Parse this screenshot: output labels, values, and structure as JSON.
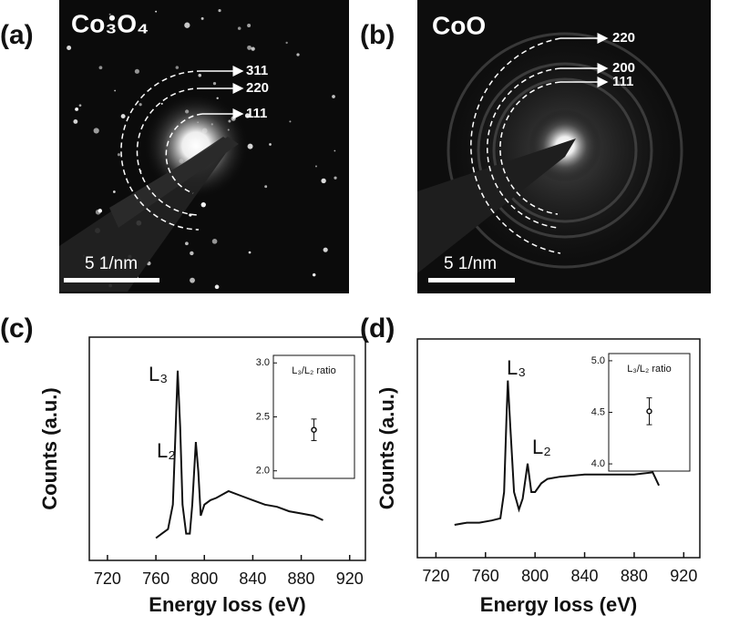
{
  "panels": [
    {
      "label": "(a)",
      "title": "Co₃O₄",
      "rings": [
        "311",
        "220",
        "111"
      ],
      "scale_bar": "5 1/nm"
    },
    {
      "label": "(b)",
      "title": "CoO",
      "rings": [
        "220",
        "200",
        "111"
      ],
      "scale_bar": "5 1/nm"
    }
  ],
  "chart_data": [
    {
      "type": "line",
      "label": "(c)",
      "xlabel": "Energy loss (eV)",
      "ylabel": "Counts (a.u.)",
      "xlim": [
        705,
        933
      ],
      "xticks": [
        720,
        760,
        800,
        840,
        880,
        920
      ],
      "ylim": [
        0,
        100
      ],
      "color": "#111111",
      "x": [
        760,
        765,
        770,
        774,
        776,
        778,
        780,
        782,
        785,
        788,
        790,
        793,
        795,
        797,
        800,
        805,
        810,
        820,
        830,
        840,
        850,
        860,
        870,
        880,
        890,
        898
      ],
      "values": [
        10,
        12,
        14,
        25,
        55,
        85,
        60,
        25,
        12,
        12,
        25,
        53,
        40,
        20,
        25,
        27,
        28,
        31,
        29,
        27,
        25,
        24,
        22,
        21,
        20,
        18
      ],
      "annotations": [
        "L₃",
        "L₂"
      ],
      "inset": {
        "title": "L₃/L₂ ratio",
        "ylim": [
          1.93,
          3.07
        ],
        "yticks": [
          {
            "value": 2,
            "label": "2.0"
          },
          2.5,
          {
            "value": 3,
            "label": "3.0"
          }
        ],
        "values": [
          2.38
        ],
        "errors": [
          0.1
        ]
      }
    },
    {
      "type": "line",
      "label": "(d)",
      "xlabel": "Energy loss (eV)",
      "ylabel": "Counts (a.u.)",
      "xlim": [
        705,
        933
      ],
      "xticks": [
        720,
        760,
        800,
        840,
        880,
        920
      ],
      "ylim": [
        0,
        100
      ],
      "color": "#111111",
      "x": [
        735,
        745,
        755,
        765,
        772,
        775,
        777,
        778,
        780,
        783,
        787,
        790,
        794,
        797,
        800,
        805,
        810,
        820,
        840,
        860,
        880,
        895,
        900
      ],
      "values": [
        15,
        16,
        16,
        17,
        18,
        30,
        65,
        81,
        60,
        30,
        22,
        27,
        43,
        30,
        30,
        34,
        36,
        37,
        38,
        38,
        38,
        39,
        33
      ],
      "annotations": [
        "L₃",
        "L₂"
      ],
      "inset": {
        "title": "L₃/L₂ ratio",
        "ylim": [
          3.93,
          5.07
        ],
        "yticks": [
          {
            "value": 4,
            "label": "4.0"
          },
          4.5,
          {
            "value": 5,
            "label": "5.0"
          }
        ],
        "values": [
          4.51
        ],
        "errors": [
          0.13
        ]
      }
    }
  ]
}
